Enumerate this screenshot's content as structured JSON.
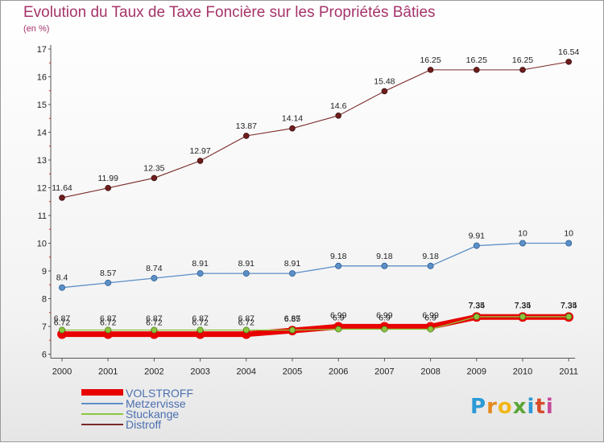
{
  "header": {
    "title": "Evolution du Taux de Taxe Foncière sur les Propriétés Bâties",
    "subtitle": "(en %)"
  },
  "logo": {
    "letters": [
      "P",
      "r",
      "o",
      "x",
      "i",
      "t",
      "i"
    ]
  },
  "chart_data": {
    "type": "line",
    "title": "Evolution du Taux de Taxe Foncière sur les Propriétés Bâties",
    "ylabel": "(en %)",
    "xlabel": "",
    "categories": [
      "2000",
      "2001",
      "2002",
      "2003",
      "2004",
      "2005",
      "2006",
      "2007",
      "2008",
      "2009",
      "2010",
      "2011"
    ],
    "ylim": [
      6,
      17
    ],
    "yticks": [
      "6",
      "7",
      "8",
      "9",
      "10",
      "11",
      "12",
      "13",
      "14",
      "15",
      "16",
      "17"
    ],
    "grid": false,
    "legend_position": "bottom-left",
    "series": [
      {
        "name": "VOLSTROFF",
        "color": "#e80000",
        "values": [
          6.72,
          6.72,
          6.72,
          6.72,
          6.72,
          6.85,
          6.99,
          6.99,
          6.99,
          7.34,
          7.34,
          7.34
        ],
        "labels": [
          "6.72",
          "6.72",
          "6.72",
          "6.72",
          "6.72",
          "6.85",
          "6.99",
          "6.99",
          "6.99",
          "7.34",
          "7.34",
          "7.34"
        ]
      },
      {
        "name": "Metzervisse",
        "color": "#5b8fc7",
        "values": [
          8.4,
          8.57,
          8.74,
          8.91,
          8.91,
          8.91,
          9.18,
          9.18,
          9.18,
          9.91,
          10,
          10
        ],
        "labels": [
          "8.4",
          "8.57",
          "8.74",
          "8.91",
          "8.91",
          "8.91",
          "9.18",
          "9.18",
          "9.18",
          "9.91",
          "10",
          "10"
        ]
      },
      {
        "name": "Stuckange",
        "color": "#8cc63f",
        "values": [
          6.87,
          6.87,
          6.87,
          6.87,
          6.87,
          6.87,
          6.9,
          6.9,
          6.9,
          7.35,
          7.35,
          7.35
        ],
        "labels": [
          "6.87",
          "6.87",
          "6.87",
          "6.87",
          "6.87",
          "6.87",
          "6.9",
          "6.9",
          "6.9",
          "7.35",
          "7.35",
          "7.35"
        ]
      },
      {
        "name": "Distroff",
        "color": "#7a2a2a",
        "values": [
          11.64,
          11.99,
          12.35,
          12.97,
          13.87,
          14.14,
          14.6,
          15.48,
          16.25,
          16.25,
          16.25,
          16.54
        ],
        "labels": [
          "11.64",
          "11.99",
          "12.35",
          "12.97",
          "13.87",
          "14.14",
          "14.6",
          "15.48",
          "16.25",
          "16.25",
          "16.25",
          "16.54"
        ]
      }
    ]
  }
}
